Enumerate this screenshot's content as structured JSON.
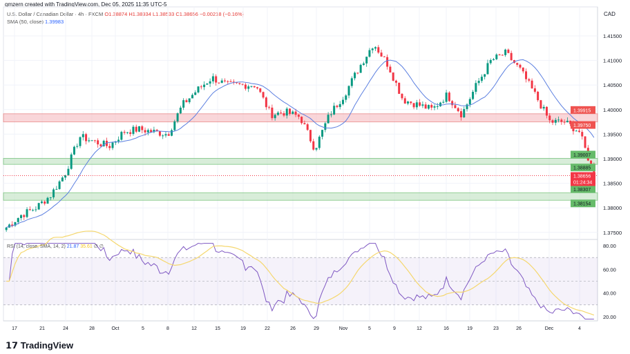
{
  "header": {
    "created": "gmzern created with TradingView.com, Dec 05, 2025 11:35 UTC-5",
    "symbol": "U.S. Dollar / Canadian Dollar · 4h · FXCM",
    "o": "O1.38874",
    "h": "H1.38934",
    "l": "L1.38533",
    "c": "C1.38656",
    "chg": "−0.00218 (−0.16%)",
    "sma_label": "SMA (50, close)",
    "sma_value": "1.39983"
  },
  "currency": "CAD",
  "rsi_legend": {
    "label": "RSI (14, close, SMA, 14, 2)",
    "rsi": "21.87",
    "sma": "35.61",
    "extra": "∅ ∅"
  },
  "logo": "TradingView",
  "colors": {
    "up": "#089981",
    "down": "#f23645",
    "sma": "#5b7fe0",
    "rsi": "#7e57c2",
    "rsi_sma": "#f5d76e",
    "red_zone": "#f7c6c9",
    "green_zone": "#c8e6c9"
  },
  "chart_data": {
    "type": "candlestick",
    "price_axis": {
      "ticks": [
        "1.41500",
        "1.41000",
        "1.40500",
        "1.40000",
        "1.39500",
        "1.39000",
        "1.38500",
        "1.38000",
        "1.37500"
      ],
      "ylim": [
        1.3725,
        1.4185
      ]
    },
    "x_ticks": [
      "17",
      "21",
      "24",
      "28",
      "Oct",
      "5",
      "8",
      "12",
      "15",
      "19",
      "22",
      "26",
      "29",
      "Nov",
      "5",
      "9",
      "12",
      "16",
      "19",
      "23",
      "26",
      "Dec",
      "4"
    ],
    "close_path": [
      1.376,
      1.3785,
      1.38,
      1.3825,
      1.387,
      1.3945,
      1.3935,
      1.3925,
      1.3955,
      1.396,
      1.3955,
      1.395,
      1.401,
      1.404,
      1.4065,
      1.405,
      1.405,
      1.405,
      1.399,
      1.3995,
      1.3985,
      1.392,
      1.399,
      1.403,
      1.4085,
      1.4135,
      1.409,
      1.402,
      1.401,
      1.4,
      1.403,
      1.399,
      1.405,
      1.41,
      1.4115,
      1.408,
      1.403,
      1.3975,
      1.3975,
      1.3955,
      1.3866
    ],
    "zones": [
      {
        "type": "resistance",
        "top": "1.39915",
        "bottom": "1.39750"
      },
      {
        "type": "support",
        "top": "1.39007",
        "bottom": "1.38885"
      },
      {
        "type": "support",
        "top": "1.38307",
        "bottom": "1.38154"
      }
    ],
    "last_price": "1.38656",
    "countdown": "01:24:34",
    "rsi_axis": {
      "ticks": [
        "80.00",
        "60.00",
        "40.00",
        "20.00"
      ],
      "ylim": [
        16,
        84
      ],
      "bands": [
        70,
        50,
        30
      ]
    }
  }
}
